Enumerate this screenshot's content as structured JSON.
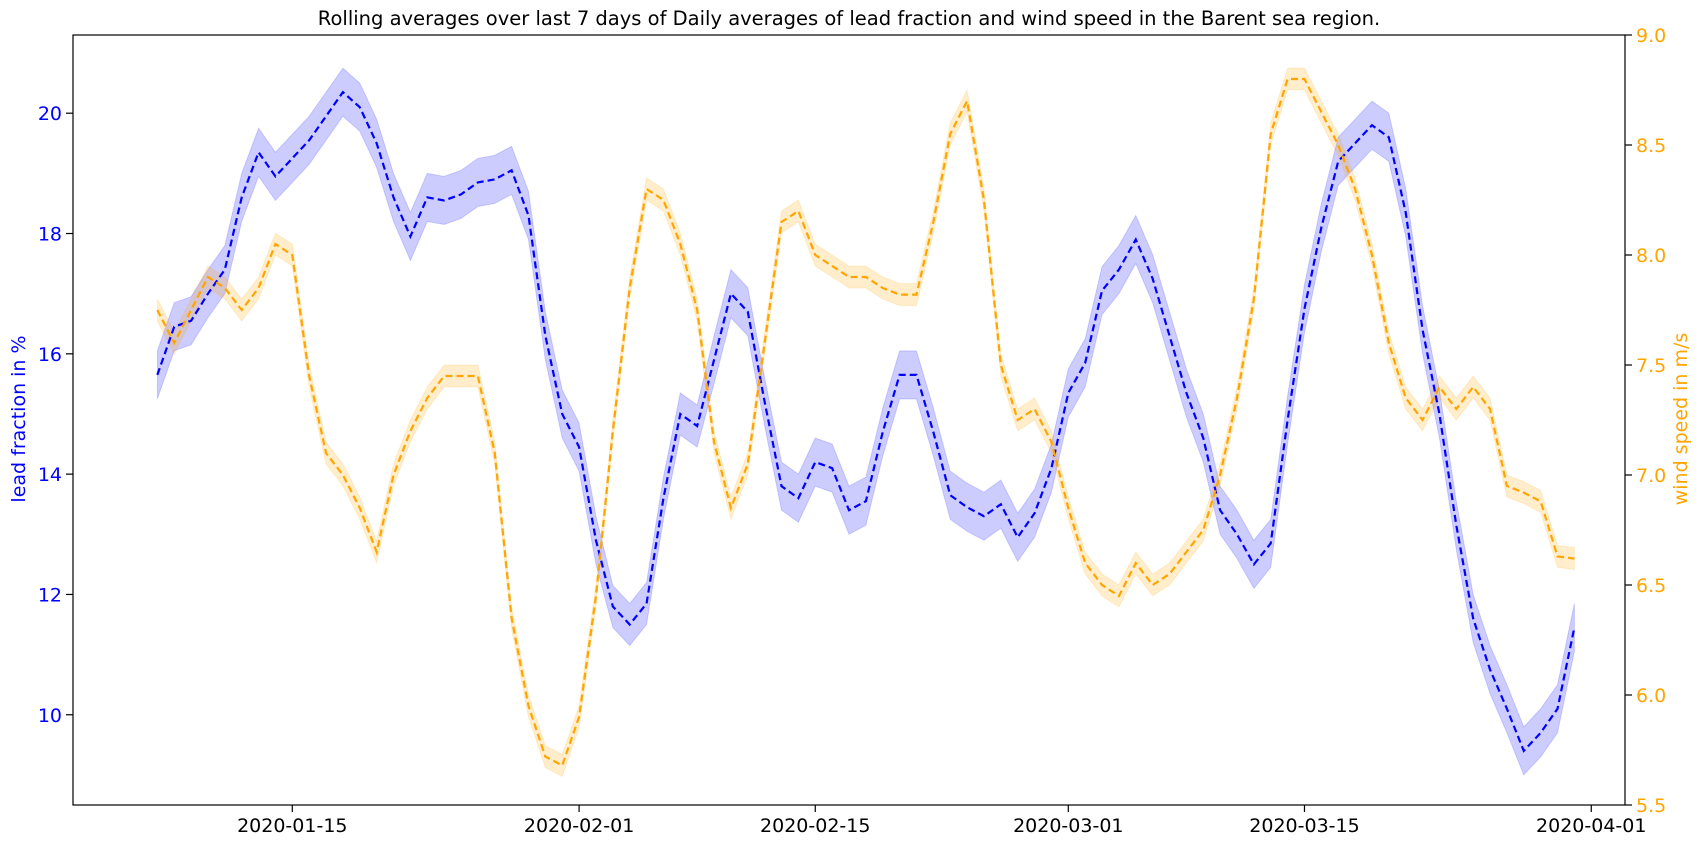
{
  "chart_data": {
    "type": "line",
    "title": "Rolling averages over last 7 days of Daily averages of lead fraction and wind speed in the Barent sea region.",
    "x_type": "date",
    "x_range": [
      "2020-01-02",
      "2020-04-03"
    ],
    "x_ticks": [
      "2020-01-15",
      "2020-02-01",
      "2020-02-15",
      "2020-03-01",
      "2020-03-15",
      "2020-04-01"
    ],
    "y_left": {
      "label": "lead fraction in %",
      "range": [
        8.5,
        21.3
      ],
      "ticks": [
        10,
        12,
        14,
        16,
        18,
        20
      ],
      "color": "#0000ff"
    },
    "y_right": {
      "label": "wind speed in m/s",
      "range": [
        5.5,
        9.0
      ],
      "ticks": [
        "5.5",
        "6.0",
        "6.5",
        "7.0",
        "7.5",
        "8.0",
        "8.5",
        "9.0"
      ],
      "color": "#ffa500"
    },
    "grid": false,
    "series": [
      {
        "axis": "left",
        "color": "#0000ff",
        "band_color": "#0000ff",
        "style": "dashed",
        "points": [
          [
            "2020-01-07",
            15.65,
            0.4
          ],
          [
            "2020-01-08",
            16.45,
            0.4
          ],
          [
            "2020-01-09",
            16.55,
            0.4
          ],
          [
            "2020-01-10",
            17.0,
            0.4
          ],
          [
            "2020-01-11",
            17.4,
            0.4
          ],
          [
            "2020-01-12",
            18.6,
            0.4
          ],
          [
            "2020-01-13",
            19.35,
            0.4
          ],
          [
            "2020-01-14",
            18.95,
            0.4
          ],
          [
            "2020-01-15",
            19.25,
            0.4
          ],
          [
            "2020-01-16",
            19.55,
            0.4
          ],
          [
            "2020-01-17",
            19.95,
            0.4
          ],
          [
            "2020-01-18",
            20.35,
            0.4
          ],
          [
            "2020-01-19",
            20.1,
            0.4
          ],
          [
            "2020-01-20",
            19.5,
            0.4
          ],
          [
            "2020-01-21",
            18.6,
            0.4
          ],
          [
            "2020-01-22",
            17.95,
            0.4
          ],
          [
            "2020-01-23",
            18.6,
            0.4
          ],
          [
            "2020-01-24",
            18.55,
            0.4
          ],
          [
            "2020-01-25",
            18.65,
            0.4
          ],
          [
            "2020-01-26",
            18.85,
            0.4
          ],
          [
            "2020-01-27",
            18.9,
            0.4
          ],
          [
            "2020-01-28",
            19.05,
            0.4
          ],
          [
            "2020-01-29",
            18.3,
            0.4
          ],
          [
            "2020-01-30",
            16.3,
            0.4
          ],
          [
            "2020-01-31",
            15.0,
            0.4
          ],
          [
            "2020-02-01",
            14.45,
            0.4
          ],
          [
            "2020-02-02",
            12.9,
            0.4
          ],
          [
            "2020-02-03",
            11.8,
            0.35
          ],
          [
            "2020-02-04",
            11.5,
            0.35
          ],
          [
            "2020-02-05",
            11.85,
            0.35
          ],
          [
            "2020-02-06",
            13.6,
            0.35
          ],
          [
            "2020-02-07",
            15.0,
            0.35
          ],
          [
            "2020-02-08",
            14.8,
            0.35
          ],
          [
            "2020-02-09",
            15.9,
            0.4
          ],
          [
            "2020-02-10",
            17.0,
            0.4
          ],
          [
            "2020-02-11",
            16.7,
            0.4
          ],
          [
            "2020-02-12",
            15.2,
            0.4
          ],
          [
            "2020-02-13",
            13.8,
            0.4
          ],
          [
            "2020-02-14",
            13.6,
            0.4
          ],
          [
            "2020-02-15",
            14.2,
            0.4
          ],
          [
            "2020-02-16",
            14.1,
            0.4
          ],
          [
            "2020-02-17",
            13.4,
            0.4
          ],
          [
            "2020-02-18",
            13.55,
            0.4
          ],
          [
            "2020-02-19",
            14.7,
            0.4
          ],
          [
            "2020-02-20",
            15.65,
            0.4
          ],
          [
            "2020-02-21",
            15.65,
            0.4
          ],
          [
            "2020-02-22",
            14.7,
            0.4
          ],
          [
            "2020-02-23",
            13.65,
            0.4
          ],
          [
            "2020-02-24",
            13.45,
            0.4
          ],
          [
            "2020-02-25",
            13.3,
            0.4
          ],
          [
            "2020-02-26",
            13.5,
            0.4
          ],
          [
            "2020-02-27",
            12.95,
            0.4
          ],
          [
            "2020-02-28",
            13.35,
            0.4
          ],
          [
            "2020-02-29",
            14.1,
            0.4
          ],
          [
            "2020-03-01",
            15.35,
            0.4
          ],
          [
            "2020-03-02",
            15.85,
            0.4
          ],
          [
            "2020-03-03",
            17.05,
            0.4
          ],
          [
            "2020-03-04",
            17.4,
            0.4
          ],
          [
            "2020-03-05",
            17.9,
            0.4
          ],
          [
            "2020-03-06",
            17.25,
            0.4
          ],
          [
            "2020-03-07",
            16.3,
            0.4
          ],
          [
            "2020-03-08",
            15.35,
            0.4
          ],
          [
            "2020-03-09",
            14.6,
            0.4
          ],
          [
            "2020-03-10",
            13.4,
            0.4
          ],
          [
            "2020-03-11",
            13.0,
            0.4
          ],
          [
            "2020-03-12",
            12.5,
            0.4
          ],
          [
            "2020-03-13",
            12.85,
            0.4
          ],
          [
            "2020-03-14",
            14.9,
            0.4
          ],
          [
            "2020-03-15",
            16.75,
            0.4
          ],
          [
            "2020-03-16",
            18.1,
            0.4
          ],
          [
            "2020-03-17",
            19.2,
            0.4
          ],
          [
            "2020-03-18",
            19.5,
            0.4
          ],
          [
            "2020-03-19",
            19.8,
            0.4
          ],
          [
            "2020-03-20",
            19.6,
            0.4
          ],
          [
            "2020-03-21",
            18.35,
            0.4
          ],
          [
            "2020-03-22",
            16.4,
            0.4
          ],
          [
            "2020-03-23",
            15.0,
            0.4
          ],
          [
            "2020-03-24",
            13.15,
            0.4
          ],
          [
            "2020-03-25",
            11.6,
            0.4
          ],
          [
            "2020-03-26",
            10.75,
            0.4
          ],
          [
            "2020-03-27",
            10.1,
            0.4
          ],
          [
            "2020-03-28",
            9.4,
            0.4
          ],
          [
            "2020-03-29",
            9.7,
            0.4
          ],
          [
            "2020-03-30",
            10.1,
            0.4
          ],
          [
            "2020-03-31",
            11.45,
            0.4
          ]
        ]
      },
      {
        "axis": "right",
        "color": "#ffa500",
        "band_color": "#ffa500",
        "style": "dashed",
        "points": [
          [
            "2020-01-07",
            7.75,
            0.05
          ],
          [
            "2020-01-08",
            7.6,
            0.05
          ],
          [
            "2020-01-09",
            7.75,
            0.05
          ],
          [
            "2020-01-10",
            7.9,
            0.05
          ],
          [
            "2020-01-11",
            7.85,
            0.05
          ],
          [
            "2020-01-12",
            7.75,
            0.05
          ],
          [
            "2020-01-13",
            7.85,
            0.05
          ],
          [
            "2020-01-14",
            8.05,
            0.05
          ],
          [
            "2020-01-15",
            8.0,
            0.05
          ],
          [
            "2020-01-16",
            7.45,
            0.05
          ],
          [
            "2020-01-17",
            7.1,
            0.05
          ],
          [
            "2020-01-18",
            7.0,
            0.05
          ],
          [
            "2020-01-19",
            6.85,
            0.05
          ],
          [
            "2020-01-20",
            6.65,
            0.05
          ],
          [
            "2020-01-21",
            7.0,
            0.05
          ],
          [
            "2020-01-22",
            7.2,
            0.05
          ],
          [
            "2020-01-23",
            7.35,
            0.05
          ],
          [
            "2020-01-24",
            7.45,
            0.05
          ],
          [
            "2020-01-25",
            7.45,
            0.05
          ],
          [
            "2020-01-26",
            7.45,
            0.05
          ],
          [
            "2020-01-27",
            7.1,
            0.05
          ],
          [
            "2020-01-28",
            6.35,
            0.05
          ],
          [
            "2020-01-29",
            5.95,
            0.05
          ],
          [
            "2020-01-30",
            5.72,
            0.05
          ],
          [
            "2020-01-31",
            5.68,
            0.05
          ],
          [
            "2020-02-01",
            5.9,
            0.05
          ],
          [
            "2020-02-02",
            6.45,
            0.05
          ],
          [
            "2020-02-03",
            7.2,
            0.05
          ],
          [
            "2020-02-04",
            7.85,
            0.05
          ],
          [
            "2020-02-05",
            8.3,
            0.05
          ],
          [
            "2020-02-06",
            8.25,
            0.05
          ],
          [
            "2020-02-07",
            8.05,
            0.05
          ],
          [
            "2020-02-08",
            7.75,
            0.05
          ],
          [
            "2020-02-09",
            7.15,
            0.05
          ],
          [
            "2020-02-10",
            6.85,
            0.05
          ],
          [
            "2020-02-11",
            7.05,
            0.05
          ],
          [
            "2020-02-12",
            7.6,
            0.05
          ],
          [
            "2020-02-13",
            8.15,
            0.05
          ],
          [
            "2020-02-14",
            8.2,
            0.05
          ],
          [
            "2020-02-15",
            8.0,
            0.05
          ],
          [
            "2020-02-16",
            7.95,
            0.05
          ],
          [
            "2020-02-17",
            7.9,
            0.05
          ],
          [
            "2020-02-18",
            7.9,
            0.05
          ],
          [
            "2020-02-19",
            7.85,
            0.05
          ],
          [
            "2020-02-20",
            7.82,
            0.05
          ],
          [
            "2020-02-21",
            7.82,
            0.05
          ],
          [
            "2020-02-22",
            8.15,
            0.05
          ],
          [
            "2020-02-23",
            8.55,
            0.05
          ],
          [
            "2020-02-24",
            8.7,
            0.05
          ],
          [
            "2020-02-25",
            8.25,
            0.05
          ],
          [
            "2020-02-26",
            7.5,
            0.05
          ],
          [
            "2020-02-27",
            7.25,
            0.05
          ],
          [
            "2020-02-28",
            7.3,
            0.05
          ],
          [
            "2020-02-29",
            7.15,
            0.05
          ],
          [
            "2020-03-01",
            6.85,
            0.05
          ],
          [
            "2020-03-02",
            6.6,
            0.05
          ],
          [
            "2020-03-03",
            6.5,
            0.05
          ],
          [
            "2020-03-04",
            6.45,
            0.05
          ],
          [
            "2020-03-05",
            6.6,
            0.05
          ],
          [
            "2020-03-06",
            6.5,
            0.05
          ],
          [
            "2020-03-07",
            6.55,
            0.05
          ],
          [
            "2020-03-08",
            6.65,
            0.05
          ],
          [
            "2020-03-09",
            6.75,
            0.05
          ],
          [
            "2020-03-10",
            7.0,
            0.05
          ],
          [
            "2020-03-11",
            7.35,
            0.05
          ],
          [
            "2020-03-12",
            7.8,
            0.05
          ],
          [
            "2020-03-13",
            8.55,
            0.05
          ],
          [
            "2020-03-14",
            8.8,
            0.05
          ],
          [
            "2020-03-15",
            8.8,
            0.05
          ],
          [
            "2020-03-16",
            8.65,
            0.05
          ],
          [
            "2020-03-17",
            8.5,
            0.05
          ],
          [
            "2020-03-18",
            8.3,
            0.05
          ],
          [
            "2020-03-19",
            8.0,
            0.05
          ],
          [
            "2020-03-20",
            7.6,
            0.05
          ],
          [
            "2020-03-21",
            7.35,
            0.05
          ],
          [
            "2020-03-22",
            7.25,
            0.05
          ],
          [
            "2020-03-23",
            7.4,
            0.05
          ],
          [
            "2020-03-24",
            7.3,
            0.05
          ],
          [
            "2020-03-25",
            7.4,
            0.05
          ],
          [
            "2020-03-26",
            7.3,
            0.05
          ],
          [
            "2020-03-27",
            6.95,
            0.05
          ],
          [
            "2020-03-28",
            6.92,
            0.05
          ],
          [
            "2020-03-29",
            6.88,
            0.05
          ],
          [
            "2020-03-30",
            6.63,
            0.05
          ],
          [
            "2020-03-31",
            6.62,
            0.05
          ]
        ]
      }
    ]
  }
}
